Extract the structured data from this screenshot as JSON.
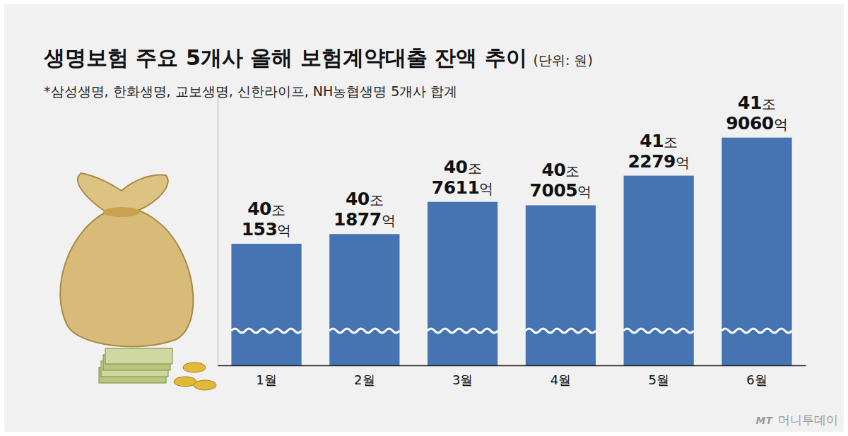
{
  "chart_data": {
    "type": "bar",
    "title": "생명보험 주요 5개사 올해 보험계약대출 잔액 추이",
    "unit_label": "(단위: 원)",
    "subtitle": "*삼성생명, 한화생명, 교보생명, 신한라이프, NH농협생명 5개사 합계",
    "source": "머니투데이",
    "source_logo": "MT",
    "categories": [
      "1월",
      "2월",
      "3월",
      "4월",
      "5월",
      "6월"
    ],
    "values": [
      40015300000000,
      40187700000000,
      40761100000000,
      40700500000000,
      41227900000000,
      41906000000000
    ],
    "value_labels": [
      "40조 153억",
      "40조 1877억",
      "40조 7611억",
      "40조 7005억",
      "41조 2279억",
      "41조 9060억"
    ],
    "color": "#4674b3",
    "ylim": [
      37850000000000,
      42720000000000
    ],
    "grid": false,
    "data_labels": true,
    "tick_labels": "x"
  }
}
